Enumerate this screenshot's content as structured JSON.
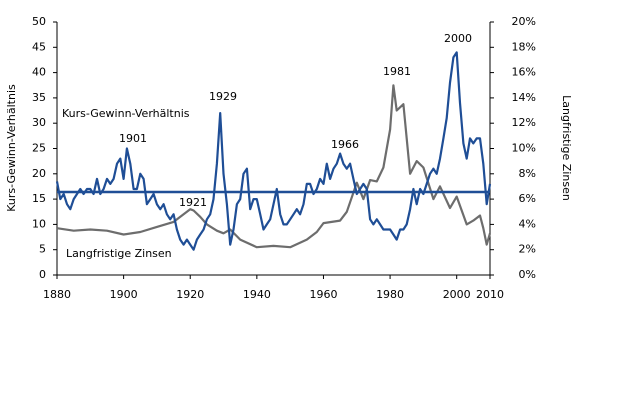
{
  "chart_data": {
    "type": "line",
    "ylabel": "Kurs-Gewinn-Verhältnis",
    "y2label": "Langfristige Zinsen",
    "xlim": [
      1880,
      2010
    ],
    "xticks": [
      1880,
      1900,
      1920,
      1940,
      1960,
      1980,
      2000,
      2010
    ],
    "ylim": [
      0,
      50
    ],
    "yticks": [
      0,
      5,
      10,
      15,
      20,
      25,
      30,
      35,
      40,
      45,
      50
    ],
    "y2lim": [
      0,
      20
    ],
    "y2ticks": [
      {
        "value": 0,
        "label": "0%"
      },
      {
        "value": 2,
        "label": "2%"
      },
      {
        "value": 4,
        "label": "4%"
      },
      {
        "value": 6,
        "label": "6%"
      },
      {
        "value": 8,
        "label": "8%"
      },
      {
        "value": 10,
        "label": "10%"
      },
      {
        "value": 12,
        "label": "12%"
      },
      {
        "value": 14,
        "label": "14%"
      },
      {
        "value": 16,
        "label": "16%"
      },
      {
        "value": 18,
        "label": "18%"
      },
      {
        "value": 20,
        "label": "20%"
      }
    ],
    "mean_line": 16.4,
    "mean_line_color": "#1f4e96",
    "series": [
      {
        "name": "Kurs-Gewinn-Verhältnis",
        "color": "#1f4e96",
        "x": [
          1880,
          1881,
          1882,
          1883,
          1884,
          1885,
          1886,
          1887,
          1888,
          1889,
          1890,
          1891,
          1892,
          1893,
          1894,
          1895,
          1896,
          1897,
          1898,
          1899,
          1900,
          1901,
          1902,
          1903,
          1904,
          1905,
          1906,
          1907,
          1908,
          1909,
          1910,
          1911,
          1912,
          1913,
          1914,
          1915,
          1916,
          1917,
          1918,
          1919,
          1920,
          1921,
          1922,
          1923,
          1924,
          1925,
          1926,
          1927,
          1928,
          1929,
          1930,
          1931,
          1932,
          1933,
          1934,
          1935,
          1936,
          1937,
          1938,
          1939,
          1940,
          1941,
          1942,
          1943,
          1944,
          1945,
          1946,
          1947,
          1948,
          1949,
          1950,
          1951,
          1952,
          1953,
          1954,
          1955,
          1956,
          1957,
          1958,
          1959,
          1960,
          1961,
          1962,
          1963,
          1964,
          1965,
          1966,
          1967,
          1968,
          1969,
          1970,
          1971,
          1972,
          1973,
          1974,
          1975,
          1976,
          1977,
          1978,
          1979,
          1980,
          1981,
          1982,
          1983,
          1984,
          1985,
          1986,
          1987,
          1988,
          1989,
          1990,
          1991,
          1992,
          1993,
          1994,
          1995,
          1996,
          1997,
          1998,
          1999,
          2000,
          2001,
          2002,
          2003,
          2004,
          2005,
          2006,
          2007,
          2008,
          2009,
          2010
        ],
        "values": [
          18.5,
          15,
          16,
          14,
          13,
          15,
          16,
          17,
          16,
          17,
          17,
          16,
          19,
          16,
          17,
          19,
          18,
          19,
          22,
          23,
          19,
          25,
          22,
          17,
          17,
          20,
          19,
          14,
          15,
          16,
          14,
          13,
          14,
          12,
          11,
          12,
          9,
          7,
          6,
          7,
          6,
          5,
          7,
          8,
          9,
          11,
          12,
          15,
          22,
          32,
          20,
          14,
          6,
          9,
          14,
          15,
          20,
          21,
          13,
          15,
          15,
          12,
          9,
          10,
          11,
          14,
          17,
          12,
          10,
          10,
          11,
          12,
          13,
          12,
          14,
          18,
          18,
          16,
          17,
          19,
          18,
          22,
          19,
          21,
          22,
          24,
          22,
          21,
          22,
          19,
          16,
          17,
          18,
          17,
          11,
          10,
          11,
          10,
          9,
          9,
          9,
          8,
          7,
          9,
          9,
          10,
          13,
          17,
          14,
          17,
          16,
          18,
          20,
          21,
          20,
          23,
          27,
          31,
          38,
          43,
          44,
          34,
          26,
          23,
          27,
          26,
          27,
          27,
          22,
          14,
          18
        ]
      },
      {
        "name": "Langfristige Zinsen",
        "color": "#6d6d6d",
        "axis": "y2",
        "x": [
          1880,
          1885,
          1890,
          1895,
          1900,
          1905,
          1910,
          1915,
          1918,
          1920,
          1921,
          1923,
          1925,
          1928,
          1930,
          1932,
          1935,
          1940,
          1945,
          1950,
          1955,
          1958,
          1960,
          1965,
          1967,
          1970,
          1972,
          1974,
          1976,
          1978,
          1980,
          1981,
          1982,
          1984,
          1986,
          1988,
          1990,
          1993,
          1995,
          1998,
          2000,
          2003,
          2005,
          2007,
          2008,
          2009,
          2010
        ],
        "values": [
          3.7,
          3.5,
          3.6,
          3.5,
          3.2,
          3.4,
          3.8,
          4.2,
          4.8,
          5.2,
          5.1,
          4.6,
          4.0,
          3.5,
          3.3,
          3.6,
          2.8,
          2.2,
          2.3,
          2.2,
          2.8,
          3.4,
          4.1,
          4.3,
          5.0,
          7.3,
          6.0,
          7.5,
          7.4,
          8.5,
          11.5,
          15.0,
          13.0,
          13.5,
          8,
          9,
          8.5,
          6,
          7,
          5.3,
          6.2,
          4,
          4.3,
          4.7,
          3.7,
          2.4,
          3.3
        ]
      }
    ],
    "annotations": [
      "1901",
      "1921",
      "1929",
      "1966",
      "1981",
      "2000"
    ]
  }
}
